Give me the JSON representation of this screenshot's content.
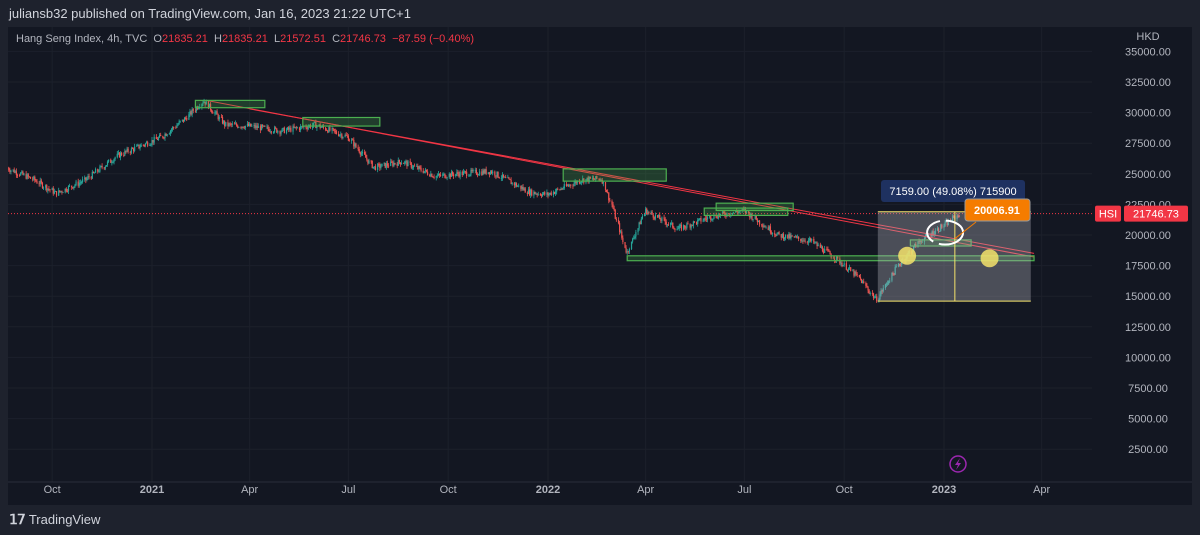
{
  "header": {
    "publisher_line": "juliansb32 published on TradingView.com, Jan 16, 2023 21:22 UTC+1"
  },
  "legend": {
    "symbol": "Hang Seng Index, 4h, TVC",
    "open_label": "O",
    "open": "21835.21",
    "high_label": "H",
    "high": "21835.21",
    "low_label": "L",
    "low": "21572.51",
    "close_label": "C",
    "close": "21746.73",
    "change": "−87.59 (−0.40%)"
  },
  "price_axis": {
    "currency": "HKD",
    "ticks": [
      "35000.00",
      "32500.00",
      "30000.00",
      "27500.00",
      "25000.00",
      "22500.00",
      "20000.00",
      "17500.00",
      "15000.00",
      "12500.00",
      "10000.00",
      "7500.00",
      "5000.00",
      "2500.00"
    ],
    "last_price_symbol": "HSI",
    "last_price": "21746.73"
  },
  "time_axis": {
    "ticks": [
      {
        "label": "Oct",
        "date": "2020-10-01",
        "bold": false
      },
      {
        "label": "2021",
        "date": "2021-01-01",
        "bold": true
      },
      {
        "label": "Apr",
        "date": "2021-04-01",
        "bold": false
      },
      {
        "label": "Jul",
        "date": "2021-07-01",
        "bold": false
      },
      {
        "label": "Oct",
        "date": "2021-10-01",
        "bold": false
      },
      {
        "label": "2022",
        "date": "2022-01-01",
        "bold": true
      },
      {
        "label": "Apr",
        "date": "2022-04-01",
        "bold": false
      },
      {
        "label": "Jul",
        "date": "2022-07-01",
        "bold": false
      },
      {
        "label": "Oct",
        "date": "2022-10-01",
        "bold": false
      },
      {
        "label": "2023",
        "date": "2023-01-01",
        "bold": true
      },
      {
        "label": "Apr",
        "date": "2023-04-01",
        "bold": false
      }
    ]
  },
  "annotations": {
    "measure_label": "7159.00 (49.08%) 715900",
    "callout_label": "20006.91"
  },
  "footer": {
    "brand": "TradingView",
    "logo_text": "17"
  },
  "colors": {
    "up": "#26a69a",
    "down": "#ef5350",
    "drawing_green": "#4caf50",
    "trendline": "#f23645",
    "measure": "#f5e36b",
    "callout": "#f57c00",
    "watermark": "#9c27b0"
  },
  "chart_data": {
    "type": "candlestick",
    "symbol": "HSI",
    "interval": "4h",
    "ylim": [
      1000,
      35500
    ],
    "closes": [
      [
        "2020-08-20",
        25500
      ],
      [
        "2020-09-15",
        24500
      ],
      [
        "2020-10-05",
        23400
      ],
      [
        "2020-11-01",
        24500
      ],
      [
        "2020-12-01",
        26500
      ],
      [
        "2021-01-10",
        28000
      ],
      [
        "2021-02-01",
        29500
      ],
      [
        "2021-02-18",
        31000
      ],
      [
        "2021-03-10",
        29000
      ],
      [
        "2021-04-01",
        28900
      ],
      [
        "2021-05-01",
        28500
      ],
      [
        "2021-06-01",
        29000
      ],
      [
        "2021-07-01",
        28000
      ],
      [
        "2021-07-25",
        25500
      ],
      [
        "2021-08-20",
        26000
      ],
      [
        "2021-09-20",
        24800
      ],
      [
        "2021-10-10",
        25000
      ],
      [
        "2021-11-10",
        25200
      ],
      [
        "2021-12-15",
        23500
      ],
      [
        "2022-01-01",
        23300
      ],
      [
        "2022-02-01",
        24500
      ],
      [
        "2022-02-20",
        24600
      ],
      [
        "2022-03-01",
        22500
      ],
      [
        "2022-03-15",
        18500
      ],
      [
        "2022-04-01",
        22000
      ],
      [
        "2022-05-01",
        20500
      ],
      [
        "2022-06-01",
        21500
      ],
      [
        "2022-07-01",
        22000
      ],
      [
        "2022-08-01",
        20000
      ],
      [
        "2022-09-01",
        19500
      ],
      [
        "2022-09-25",
        18000
      ],
      [
        "2022-10-15",
        16500
      ],
      [
        "2022-10-31",
        14700
      ],
      [
        "2022-11-20",
        17500
      ],
      [
        "2022-12-10",
        19500
      ],
      [
        "2023-01-05",
        21000
      ],
      [
        "2023-01-16",
        21746.73
      ]
    ]
  }
}
